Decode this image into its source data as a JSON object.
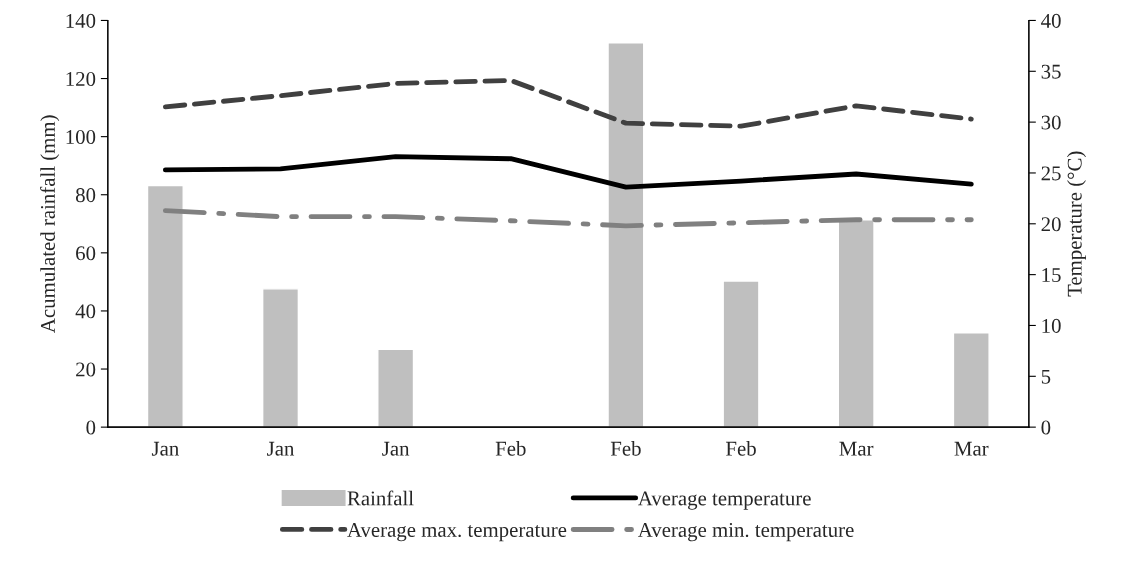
{
  "chart_data": {
    "type": "bar",
    "ylabel": "Acumulated rainfall (mm)",
    "y2label": "Temperature (°C)",
    "categories": [
      "Jan",
      "Jan",
      "Jan",
      "Feb",
      "Feb",
      "Feb",
      "Mar",
      "Mar"
    ],
    "series": [
      {
        "name": "Rainfall",
        "color": "#bfbfbf",
        "values": [
          83.2,
          47.6,
          26.8,
          null,
          132.3,
          50.3,
          71.4,
          32.5
        ]
      },
      {
        "name": "Average temperature",
        "type": "line",
        "axis": "y2",
        "color": "#000000",
        "line_style": "solid",
        "values": [
          25.3,
          25.4,
          26.6,
          26.4,
          23.6,
          24.2,
          24.9,
          23.9
        ]
      },
      {
        "name": "Average max. temperature",
        "type": "line",
        "axis": "y2",
        "color": "#404040",
        "line_style": "dashed",
        "values": [
          31.5,
          32.6,
          33.8,
          34.1,
          29.9,
          29.6,
          31.6,
          30.3
        ]
      },
      {
        "name": "Average min. temperature",
        "type": "line",
        "axis": "y2",
        "color": "#808080",
        "line_style": "dashdot",
        "values": [
          21.3,
          20.7,
          20.7,
          20.3,
          19.8,
          20.1,
          20.4,
          20.4
        ]
      }
    ],
    "ylim": [
      0,
      140
    ],
    "yticks": [
      0,
      20,
      40,
      60,
      80,
      100,
      120,
      140
    ],
    "y2lim": [
      0,
      40
    ],
    "y2ticks": [
      0,
      5,
      10,
      15,
      20,
      25,
      30,
      35,
      40
    ],
    "grid": false,
    "legend": "bottom"
  }
}
